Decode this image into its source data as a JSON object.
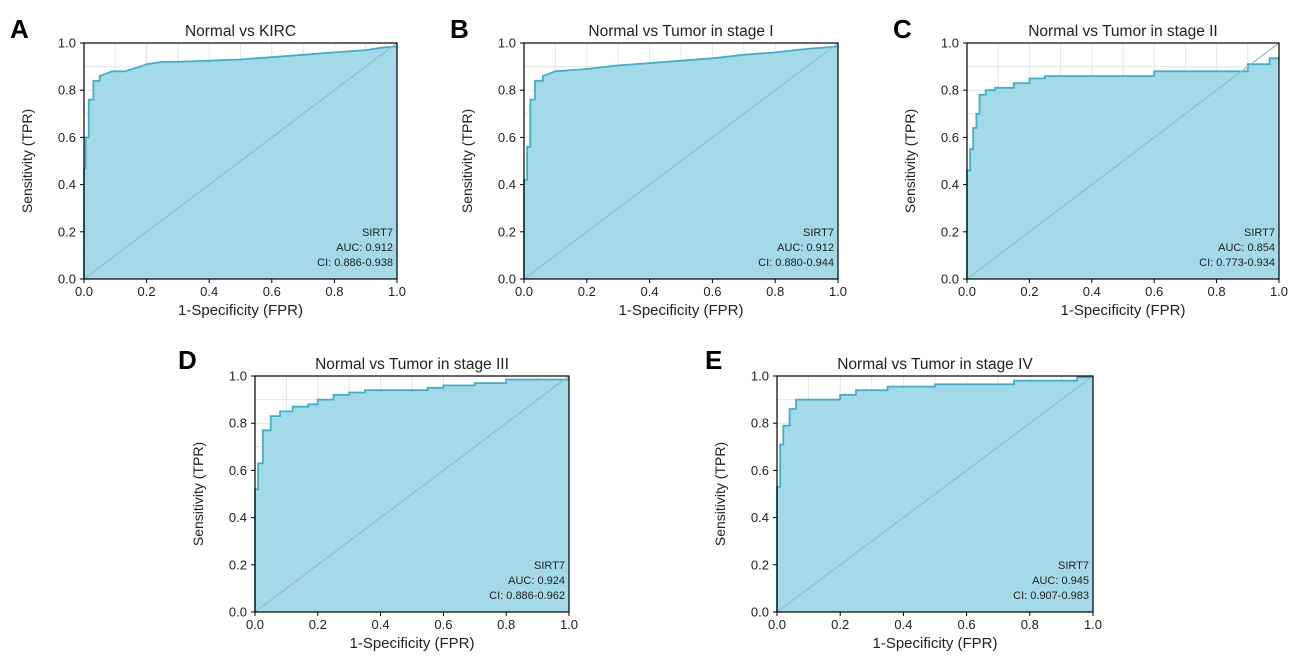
{
  "colors": {
    "fill": "#9fd8e6",
    "curve": "#3fb0cc",
    "diagonal": "#8fbccc",
    "grid": "#e6e6e6",
    "axis": "#000000",
    "text": "#222222"
  },
  "chart_data": [
    {
      "type": "line",
      "panel": "A",
      "title": "Normal  vs   KIRC",
      "xlabel": "1-Specificity (FPR)",
      "ylabel": "Sensitivity (TPR)",
      "xlim": [
        0,
        1
      ],
      "ylim": [
        0,
        1
      ],
      "xticks": [
        "0.0",
        "0.2",
        "0.4",
        "0.6",
        "0.8",
        "1.0"
      ],
      "yticks": [
        "0.0",
        "0.2",
        "0.4",
        "0.6",
        "0.8",
        "1.0"
      ],
      "annotation": [
        "SIRT7",
        "AUC: 0.912",
        "CI: 0.886-0.938"
      ],
      "diagonal": true,
      "series": [
        {
          "name": "SIRT7",
          "x": [
            0,
            0,
            0.005,
            0.005,
            0.015,
            0.015,
            0.03,
            0.03,
            0.05,
            0.05,
            0.07,
            0.09,
            0.13,
            0.18,
            0.2,
            0.25,
            0.3,
            0.4,
            0.5,
            0.55,
            0.6,
            0.7,
            0.8,
            0.9,
            0.95,
            1.0
          ],
          "y": [
            0,
            0.47,
            0.47,
            0.6,
            0.6,
            0.76,
            0.76,
            0.84,
            0.84,
            0.86,
            0.87,
            0.88,
            0.88,
            0.9,
            0.91,
            0.92,
            0.92,
            0.925,
            0.93,
            0.935,
            0.94,
            0.95,
            0.96,
            0.97,
            0.98,
            0.985
          ]
        }
      ]
    },
    {
      "type": "line",
      "panel": "B",
      "title": "Normal vs Tumor in stage I",
      "xlabel": "1-Specificity (FPR)",
      "ylabel": "Sensitivity (TPR)",
      "xlim": [
        0,
        1
      ],
      "ylim": [
        0,
        1
      ],
      "xticks": [
        "0.0",
        "0.2",
        "0.4",
        "0.6",
        "0.8",
        "1.0"
      ],
      "yticks": [
        "0.0",
        "0.2",
        "0.4",
        "0.6",
        "0.8",
        "1.0"
      ],
      "annotation": [
        "SIRT7",
        "AUC: 0.912",
        "CI: 0.880-0.944"
      ],
      "diagonal": true,
      "series": [
        {
          "name": "SIRT7",
          "x": [
            0,
            0,
            0.01,
            0.01,
            0.02,
            0.02,
            0.035,
            0.035,
            0.06,
            0.06,
            0.08,
            0.1,
            0.15,
            0.2,
            0.3,
            0.4,
            0.5,
            0.6,
            0.7,
            0.8,
            0.9,
            1.0
          ],
          "y": [
            0,
            0.42,
            0.42,
            0.56,
            0.56,
            0.76,
            0.76,
            0.84,
            0.84,
            0.86,
            0.87,
            0.88,
            0.885,
            0.89,
            0.905,
            0.915,
            0.925,
            0.935,
            0.95,
            0.96,
            0.975,
            0.985
          ]
        }
      ]
    },
    {
      "type": "line",
      "panel": "C",
      "title": "Normal vs Tumor in stage II",
      "xlabel": "1-Specificity (FPR)",
      "ylabel": "Sensitivity (TPR)",
      "xlim": [
        0,
        1
      ],
      "ylim": [
        0,
        1
      ],
      "xticks": [
        "0.0",
        "0.2",
        "0.4",
        "0.6",
        "0.8",
        "1.0"
      ],
      "yticks": [
        "0.0",
        "0.2",
        "0.4",
        "0.6",
        "0.8",
        "1.0"
      ],
      "annotation": [
        "SIRT7",
        "AUC: 0.854",
        "CI: 0.773-0.934"
      ],
      "diagonal": true,
      "series": [
        {
          "name": "SIRT7",
          "x": [
            0,
            0,
            0.01,
            0.01,
            0.02,
            0.02,
            0.03,
            0.03,
            0.04,
            0.04,
            0.06,
            0.06,
            0.09,
            0.09,
            0.15,
            0.15,
            0.2,
            0.2,
            0.25,
            0.25,
            0.6,
            0.6,
            0.9,
            0.9,
            0.97,
            0.97,
            1.0
          ],
          "y": [
            0,
            0.46,
            0.46,
            0.55,
            0.55,
            0.64,
            0.64,
            0.7,
            0.7,
            0.78,
            0.78,
            0.8,
            0.8,
            0.81,
            0.81,
            0.83,
            0.83,
            0.85,
            0.85,
            0.86,
            0.86,
            0.88,
            0.88,
            0.91,
            0.91,
            0.935,
            0.935
          ]
        }
      ]
    },
    {
      "type": "line",
      "panel": "D",
      "title": "Normal vs Tumor in stage III",
      "xlabel": "1-Specificity (FPR)",
      "ylabel": "Sensitivity (TPR)",
      "xlim": [
        0,
        1
      ],
      "ylim": [
        0,
        1
      ],
      "xticks": [
        "0.0",
        "0.2",
        "0.4",
        "0.6",
        "0.8",
        "1.0"
      ],
      "yticks": [
        "0.0",
        "0.2",
        "0.4",
        "0.6",
        "0.8",
        "1.0"
      ],
      "annotation": [
        "SIRT7",
        "AUC: 0.924",
        "CI: 0.886-0.962"
      ],
      "diagonal": true,
      "series": [
        {
          "name": "SIRT7",
          "x": [
            0,
            0,
            0.01,
            0.01,
            0.025,
            0.025,
            0.05,
            0.05,
            0.08,
            0.08,
            0.12,
            0.12,
            0.17,
            0.17,
            0.2,
            0.2,
            0.25,
            0.25,
            0.3,
            0.3,
            0.35,
            0.35,
            0.55,
            0.55,
            0.6,
            0.6,
            0.7,
            0.7,
            0.8,
            0.8,
            1.0
          ],
          "y": [
            0,
            0.52,
            0.52,
            0.63,
            0.63,
            0.77,
            0.77,
            0.83,
            0.83,
            0.85,
            0.85,
            0.87,
            0.87,
            0.88,
            0.88,
            0.9,
            0.9,
            0.92,
            0.92,
            0.93,
            0.93,
            0.94,
            0.94,
            0.95,
            0.95,
            0.96,
            0.96,
            0.97,
            0.97,
            0.985,
            0.985
          ]
        }
      ]
    },
    {
      "type": "line",
      "panel": "E",
      "title": "Normal vs Tumor in stage IV",
      "xlabel": "1-Specificity (FPR)",
      "ylabel": "Sensitivity (TPR)",
      "xlim": [
        0,
        1
      ],
      "ylim": [
        0,
        1
      ],
      "xticks": [
        "0.0",
        "0.2",
        "0.4",
        "0.6",
        "0.8",
        "1.0"
      ],
      "yticks": [
        "0.0",
        "0.2",
        "0.4",
        "0.6",
        "0.8",
        "1.0"
      ],
      "annotation": [
        "SIRT7",
        "AUC: 0.945",
        "CI: 0.907-0.983"
      ],
      "diagonal": true,
      "series": [
        {
          "name": "SIRT7",
          "x": [
            0,
            0,
            0.01,
            0.01,
            0.02,
            0.02,
            0.04,
            0.04,
            0.06,
            0.06,
            0.2,
            0.2,
            0.25,
            0.25,
            0.35,
            0.35,
            0.5,
            0.5,
            0.75,
            0.75,
            0.95,
            0.95,
            1.0
          ],
          "y": [
            0,
            0.53,
            0.53,
            0.71,
            0.71,
            0.79,
            0.79,
            0.86,
            0.86,
            0.9,
            0.9,
            0.92,
            0.92,
            0.94,
            0.94,
            0.955,
            0.955,
            0.965,
            0.965,
            0.98,
            0.98,
            0.995,
            0.995
          ]
        }
      ]
    }
  ]
}
